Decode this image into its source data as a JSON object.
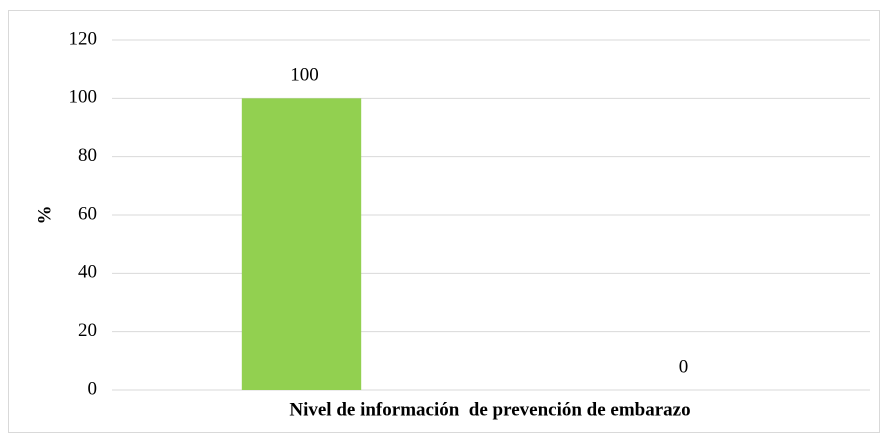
{
  "chart_data": {
    "type": "bar",
    "categories": [
      null,
      null
    ],
    "values": [
      100,
      0
    ],
    "color": "#92d050",
    "y_label": "%",
    "x_label": "Nivel de información  de prevención de embarazo",
    "ylim": [
      0,
      120
    ],
    "yticks": [
      0,
      20,
      40,
      60,
      80,
      100,
      120
    ],
    "grid": true
  }
}
